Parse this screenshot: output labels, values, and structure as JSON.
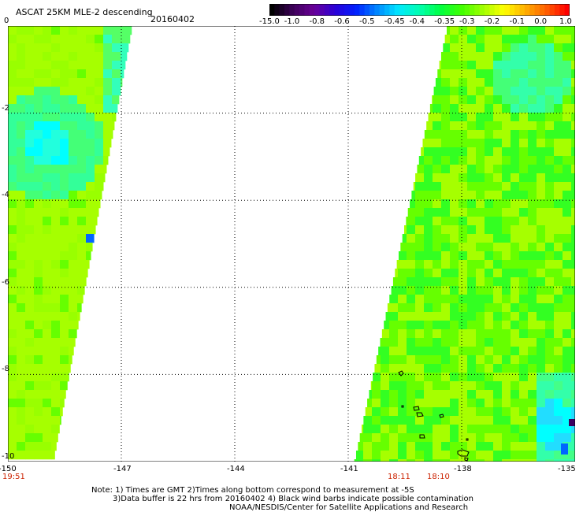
{
  "header": {
    "title": "ASCAT 25KM MLE-2 descending",
    "date": "20160402"
  },
  "colorbar": {
    "labels": [
      "-15.0",
      "-1.0",
      "-0.8",
      "-0.6",
      "-0.5",
      "-0.45",
      "-0.4",
      "-0.35",
      "-0.3",
      "-0.2",
      "-0.1",
      "0.0",
      "1.0"
    ],
    "colors": [
      "#000000",
      "#3c0058",
      "#6a0098",
      "#2a00d8",
      "#0020ff",
      "#0088ff",
      "#00e8ff",
      "#00ffb0",
      "#00ff40",
      "#40ff00",
      "#a0ff00",
      "#ffff00",
      "#ffb000",
      "#ff6000",
      "#ff0000"
    ]
  },
  "map": {
    "lon_range": [
      -150,
      -135
    ],
    "lat_range": [
      -10,
      0
    ],
    "x_ticks": [
      "-150",
      "-147",
      "-144",
      "-141",
      "-138",
      "-135"
    ],
    "y_ticks": [
      "0",
      "-2",
      "-4",
      "-6",
      "-8",
      "-10"
    ],
    "swath_colors": {
      "base": "#a6ff00",
      "green": "#66ff00",
      "bright_green": "#33ff22",
      "cyan": "#00ffff",
      "blue": "#0066ff"
    }
  },
  "times": {
    "t1": "19:51",
    "t2": "18:11",
    "t3": "18:10"
  },
  "notes": {
    "line1": "Note: 1) Times are GMT 2)Times along bottom correspond to measurement at -5S",
    "line2": "3)Data buffer is 22 hrs from 20160402 4) Black wind barbs indicate possible contamination",
    "line3": "NOAA/NESDIS/Center for Satellite Applications and Research"
  }
}
